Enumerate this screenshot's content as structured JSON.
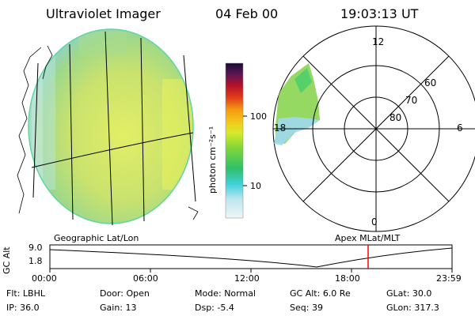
{
  "header": {
    "instrument": "Ultraviolet Imager",
    "date": "04 Feb 00",
    "time": "19:03:13 UT"
  },
  "colorbar": {
    "unit_label": "photon cm⁻²s⁻¹",
    "ticks": [
      "100",
      "10"
    ],
    "scale": "log"
  },
  "polar": {
    "mlt_labels": [
      "12",
      "18",
      "6",
      "0"
    ],
    "mlat_labels": [
      "60",
      "70",
      "80"
    ]
  },
  "footer_labels": {
    "left": "Geographic Lat/Lon",
    "right": "Apex  MLat/MLT"
  },
  "altitude_plot": {
    "y_label": "GC Alt",
    "y_ticks": [
      "9.0",
      "1.8"
    ],
    "x_ticks": [
      "00:00",
      "06:00",
      "12:00",
      "18:00",
      "23:59"
    ],
    "marker_time": "19:03",
    "marker_color": "#ff0000"
  },
  "info": {
    "row1": [
      {
        "label": "Flt:",
        "value": "LBHL"
      },
      {
        "label": "Door:",
        "value": "Open"
      },
      {
        "label": "Mode:",
        "value": "Normal"
      },
      {
        "label": "GC Alt:",
        "value": "6.0 Re"
      },
      {
        "label": "GLat:",
        "value": "30.0"
      }
    ],
    "row2": [
      {
        "label": "IP:",
        "value": "36.0"
      },
      {
        "label": "Gain:",
        "value": "13"
      },
      {
        "label": "Dsp:",
        "value": "-5.4"
      },
      {
        "label": "Seq:",
        "value": "39"
      },
      {
        "label": "GLon:",
        "value": "317.3"
      }
    ]
  },
  "colors": {
    "disk_main": "#cbe56e",
    "disk_edge": "#e6f05a",
    "disk_limb": "#7fd6e0",
    "colorbar_top": "#1a1440",
    "colorbar_bottom": "#eef6f8"
  }
}
